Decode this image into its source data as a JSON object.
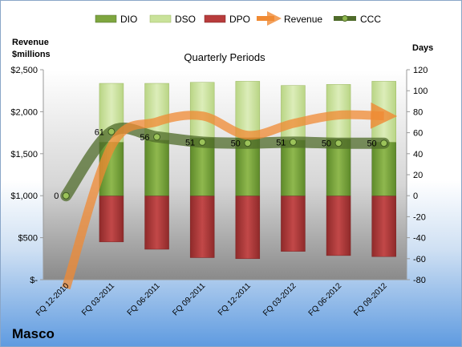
{
  "company": "Masco",
  "chart_data": {
    "type": "bar",
    "title": "Quarterly Periods",
    "left_axis_title": [
      "Revenue",
      "$millions"
    ],
    "right_axis_title": "Days",
    "categories": [
      "FQ 12-2010",
      "FQ 03-2011",
      "FQ 06-2011",
      "FQ 09-2011",
      "FQ 12-2011",
      "FQ 03-2012",
      "FQ 06-2012",
      "FQ 09-2012"
    ],
    "left_axis": {
      "ylim": [
        0,
        2500
      ],
      "ticks": [
        0,
        500,
        1000,
        1500,
        2000,
        2500
      ],
      "tick_labels": [
        "$-",
        "$500",
        "$1,000",
        "$1,500",
        "$2,000",
        "$2,500"
      ]
    },
    "right_axis": {
      "ylim": [
        -80,
        120
      ],
      "ticks": [
        -80,
        -60,
        -40,
        -20,
        0,
        20,
        40,
        60,
        80,
        100,
        120
      ]
    },
    "legend": [
      "DIO",
      "DSO",
      "DPO",
      "Revenue",
      "CCC"
    ],
    "legend_position": "top",
    "grid": false,
    "series": [
      {
        "name": "DIO",
        "type": "stacked-bar",
        "axis": "right",
        "color": "#7ea63f",
        "values": [
          null,
          51,
          53,
          55,
          55,
          53,
          54,
          51
        ]
      },
      {
        "name": "DSO",
        "type": "stacked-bar",
        "axis": "right",
        "color": "#c9e29a",
        "values": [
          null,
          56,
          54,
          53,
          54,
          52,
          52,
          58
        ]
      },
      {
        "name": "DPO",
        "type": "bar-negative",
        "axis": "right",
        "color": "#b83c3c",
        "values": [
          null,
          -44,
          -51,
          -59,
          -60,
          -53,
          -57,
          -58
        ]
      },
      {
        "name": "Revenue",
        "type": "line",
        "axis": "left",
        "color": "#f08a33",
        "values": [
          -100,
          1590,
          1880,
          1950,
          1720,
          1860,
          1960,
          1950
        ]
      },
      {
        "name": "CCC",
        "type": "line",
        "axis": "right",
        "color": "#4f6b2a",
        "values": [
          0,
          61,
          56,
          51,
          50,
          51,
          50,
          50
        ]
      }
    ],
    "ccc_labels": [
      "0",
      "61",
      "56",
      "51",
      "50",
      "51",
      "50",
      "50"
    ]
  }
}
